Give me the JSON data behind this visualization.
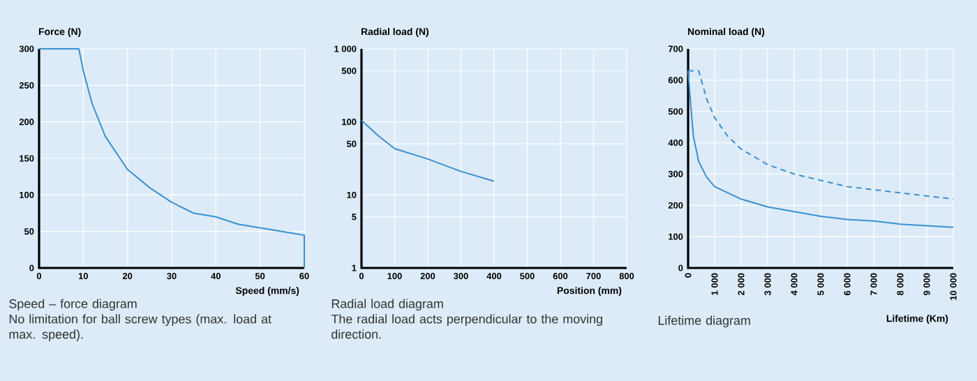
{
  "chart_data": [
    {
      "type": "line",
      "xlabel": "Speed (mm/s)",
      "ylabel": "Force (N)",
      "xlim": [
        0,
        60
      ],
      "ylim": [
        0,
        300
      ],
      "xticks": [
        0,
        10,
        20,
        30,
        40,
        50,
        60
      ],
      "yticks": [
        0,
        50,
        100,
        150,
        200,
        250,
        300
      ],
      "grid": true,
      "series": [
        {
          "color": "#3a8fd0",
          "line_style": "solid",
          "x": [
            0,
            9,
            10,
            12,
            15,
            20,
            25,
            30,
            35,
            40,
            45,
            50,
            55,
            60,
            60
          ],
          "values": [
            300,
            300,
            270,
            225,
            180,
            135,
            110,
            90,
            75,
            70,
            60,
            55,
            50,
            45,
            0
          ]
        }
      ],
      "annotations": [
        "Speed – force diagram",
        "No limitation for ball screw types (max. load at max. speed)."
      ]
    },
    {
      "type": "line",
      "xlabel": "Position (mm)",
      "ylabel": "Radial load (N)",
      "log": "y",
      "xlim": [
        0,
        800
      ],
      "ylim": [
        1,
        1000
      ],
      "xticks": [
        0,
        100,
        200,
        300,
        400,
        500,
        600,
        700,
        800
      ],
      "yticks": [
        1,
        5,
        10,
        50,
        100,
        500,
        {
          "value": 1000,
          "label": "1 000"
        }
      ],
      "grid": true,
      "series": [
        {
          "color": "#3a8fd0",
          "line_style": "solid",
          "x": [
            0,
            50,
            100,
            200,
            300,
            400
          ],
          "values": [
            105,
            65,
            43,
            31,
            21,
            15.4
          ]
        }
      ],
      "annotations": [
        "Radial load diagram",
        "The radial load acts perpendicular to the moving direction."
      ]
    },
    {
      "type": "line",
      "xlabel": "Lifetime (Km)",
      "ylabel": "Nominal load (N)",
      "xlim": [
        0,
        10000
      ],
      "ylim": [
        0,
        700
      ],
      "xticks": [
        0,
        {
          "value": 1000,
          "label": "1 000"
        },
        {
          "value": 2000,
          "label": "2 000"
        },
        {
          "value": 3000,
          "label": "3 000"
        },
        {
          "value": 4000,
          "label": "4 000"
        },
        {
          "value": 5000,
          "label": "5 000"
        },
        {
          "value": 6000,
          "label": "6 000"
        },
        {
          "value": 7000,
          "label": "7 000"
        },
        {
          "value": 8000,
          "label": "8 000"
        },
        {
          "value": 9000,
          "label": "9 000"
        },
        {
          "value": 10000,
          "label": "10 000"
        }
      ],
      "yticks": [
        0,
        100,
        200,
        300,
        400,
        500,
        600,
        700
      ],
      "grid": true,
      "series": [
        {
          "color": "#3a8fd0",
          "line_style": "dashed",
          "x": [
            0,
            400,
            700,
            1000,
            1500,
            2000,
            3000,
            4000,
            5000,
            6000,
            7000,
            8000,
            9000,
            10000
          ],
          "values": [
            630,
            630,
            540,
            480,
            420,
            380,
            330,
            300,
            280,
            260,
            250,
            240,
            230,
            220
          ]
        },
        {
          "color": "#3a8fd0",
          "line_style": "solid",
          "x": [
            0,
            100,
            200,
            400,
            700,
            1000,
            1500,
            2000,
            3000,
            4000,
            5000,
            6000,
            7000,
            8000,
            9000,
            10000
          ],
          "values": [
            630,
            520,
            420,
            340,
            290,
            260,
            240,
            220,
            195,
            180,
            165,
            155,
            150,
            140,
            135,
            130
          ]
        }
      ],
      "annotations": [
        "Lifetime diagram"
      ]
    }
  ]
}
